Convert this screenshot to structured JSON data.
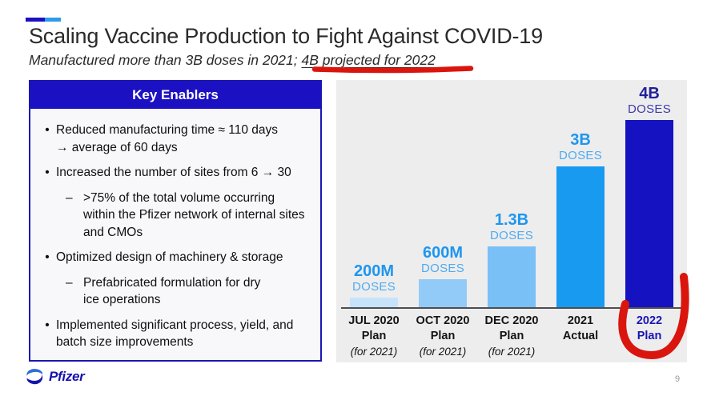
{
  "header": {
    "title": "Scaling Vaccine Production to Fight Against COVID-19",
    "subtitle_prefix": "Manufactured more than 3B doses in 2021; ",
    "subtitle_highlight": "4B projected for 2022"
  },
  "key_enablers": {
    "title": "Key Enablers",
    "markers": {
      "l1": "•",
      "l2": "–"
    },
    "bullets": [
      {
        "level": 1,
        "lines": [
          "Reduced manufacturing time ≈ 110 days",
          "→ average of 60 days"
        ]
      },
      {
        "level": 1,
        "lines": [
          "Increased the number of sites from 6 → 30"
        ]
      },
      {
        "level": 2,
        "lines": [
          ">75% of the total volume occurring",
          "within the Pfizer network of internal sites",
          "and CMOs"
        ]
      },
      {
        "level": 1,
        "lines": [
          "Optimized design of machinery & storage"
        ]
      },
      {
        "level": 2,
        "lines": [
          "Prefabricated formulation for dry",
          "ice operations"
        ]
      },
      {
        "level": 1,
        "lines": [
          "Implemented significant process, yield, and",
          "batch size improvements"
        ]
      }
    ]
  },
  "chart_data": {
    "type": "bar",
    "title": "Vaccine doses produced or planned (billions)",
    "xlabel": "",
    "ylabel": "doses",
    "ylim": [
      0,
      4
    ],
    "grid": false,
    "legend": "none",
    "doses_label": "DOSES",
    "categories": [
      "JUL 2020 Plan (for 2021)",
      "OCT 2020 Plan (for 2021)",
      "DEC 2020 Plan (for 2021)",
      "2021 Actual",
      "2022 Plan"
    ],
    "values_billions": [
      0.2,
      0.6,
      1.3,
      3,
      4
    ],
    "bars": [
      {
        "value": 0.2,
        "value_label": "200M",
        "color": "#c7e3fb",
        "tick": [
          "JUL 2020",
          "Plan",
          "(for 2021)"
        ]
      },
      {
        "value": 0.6,
        "value_label": "600M",
        "color": "#92cbf8",
        "tick": [
          "OCT 2020",
          "Plan",
          "(for 2021)"
        ]
      },
      {
        "value": 1.3,
        "value_label": "1.3B",
        "color": "#79c0f7",
        "tick": [
          "DEC 2020",
          "Plan",
          "(for 2021)"
        ]
      },
      {
        "value": 3,
        "value_label": "3B",
        "color": "#189af0",
        "tick": [
          "2021",
          "Actual"
        ]
      },
      {
        "value": 4,
        "value_label": "4B",
        "color": "#1512c2",
        "tick": [
          "2022",
          "Plan"
        ],
        "highlighted": true
      }
    ],
    "label_colors": {
      "default": "#1e96ee",
      "doses_default": "#4fabf0",
      "highlight": "#211f99",
      "doses_highlight": "#3d3aa6"
    },
    "annotations": [
      "hand-drawn red circle around the 2022 Plan tick label"
    ]
  },
  "annotations": {
    "subtitle_underline": "hand-drawn red underline under '4B projected for 2022'"
  },
  "footer": {
    "brand": "Pfizer",
    "page_number": "9"
  },
  "colors": {
    "navy": "#1c15b4",
    "navy_header": "#1b10c2",
    "bright_blue": "#1e96ee",
    "chart_bg": "#ededee",
    "red": "#da150e",
    "accent_light": "#2e9be8"
  }
}
